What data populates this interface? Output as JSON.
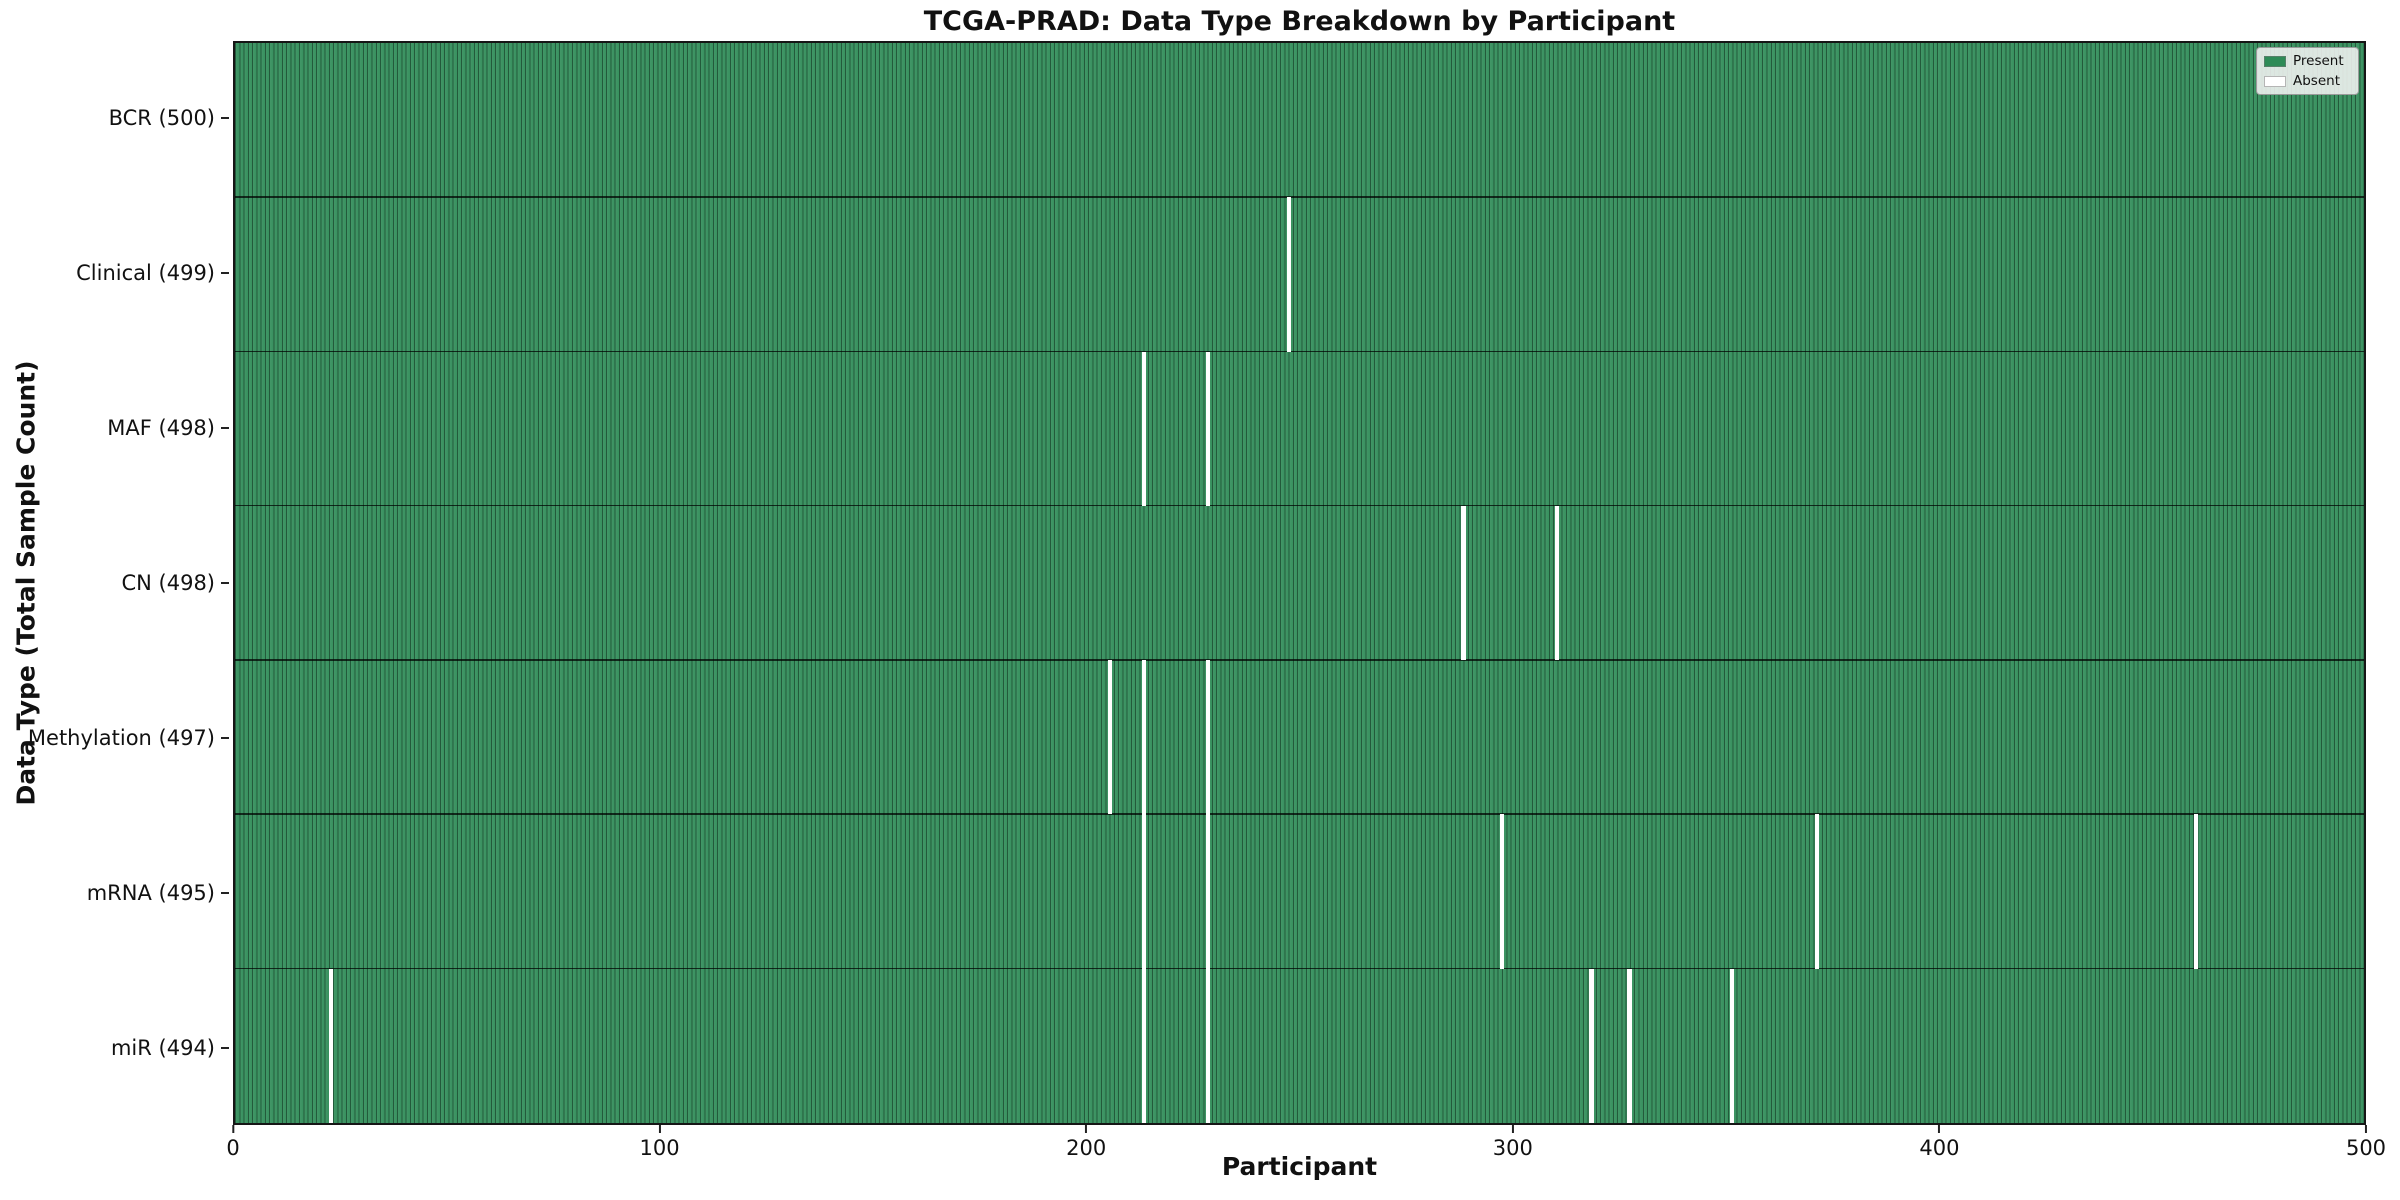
{
  "figure": {
    "title": "TCGA-PRAD: Data Type Breakdown by Participant",
    "background_color": "#ffffff"
  },
  "chart_data": {
    "type": "heatmap",
    "title": "TCGA-PRAD: Data Type Breakdown by Participant",
    "xlabel": "Participant",
    "ylabel": "Data Type (Total Sample Count)",
    "xlim": [
      0,
      500
    ],
    "x_ticks": [
      0,
      100,
      200,
      300,
      400,
      500
    ],
    "n_participants": 500,
    "grid": false,
    "legend": {
      "position": "upper right",
      "entries": [
        {
          "label": "Present",
          "color": "#2e8b57"
        },
        {
          "label": "Absent",
          "color": "#ffffff"
        }
      ]
    },
    "colors": {
      "present_fill": "#38915f",
      "cell_edge": "rgba(0,0,0,0.38)",
      "absent": "#ffffff",
      "row_separator": "#1a1a1a"
    },
    "rows": [
      {
        "data_type": "BCR",
        "label": "BCR (500)",
        "total": 500,
        "absent_participants": []
      },
      {
        "data_type": "Clinical",
        "label": "Clinical (499)",
        "total": 499,
        "absent_participants": [
          247
        ]
      },
      {
        "data_type": "MAF",
        "label": "MAF (498)",
        "total": 498,
        "absent_participants": [
          213,
          228
        ]
      },
      {
        "data_type": "CN",
        "label": "CN (498)",
        "total": 498,
        "absent_participants": [
          288,
          310
        ]
      },
      {
        "data_type": "Methylation",
        "label": "Methylation (497)",
        "total": 497,
        "absent_participants": [
          205,
          213,
          228
        ]
      },
      {
        "data_type": "mRNA",
        "label": "mRNA (495)",
        "total": 495,
        "absent_participants": [
          213,
          228,
          297,
          371,
          460
        ]
      },
      {
        "data_type": "miR",
        "label": "miR (494)",
        "total": 494,
        "absent_participants": [
          22,
          213,
          228,
          318,
          327,
          351
        ]
      }
    ]
  }
}
